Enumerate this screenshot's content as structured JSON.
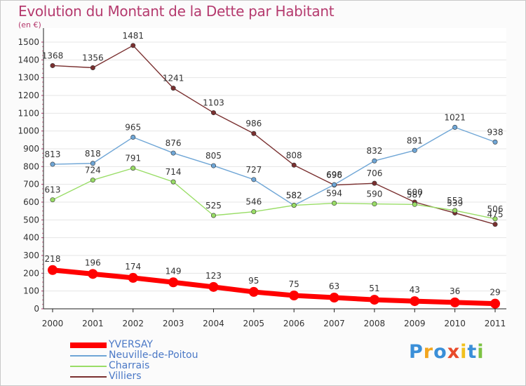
{
  "header": {
    "title": "Evolution du Montant de la Dette par Habitant",
    "subtitle": "(en €)"
  },
  "colors": {
    "title": "#b53a6e",
    "axis_label": "#333333",
    "data_label": "#333333",
    "legend_label": "#4a78c6"
  },
  "chart_data": {
    "type": "line",
    "title": "Evolution du Montant de la Dette par Habitant",
    "subtitle": "(en €)",
    "x": [
      "2000",
      "2001",
      "2002",
      "2003",
      "2004",
      "2005",
      "2006",
      "2007",
      "2008",
      "2009",
      "2010",
      "2011"
    ],
    "ylim": [
      0,
      1500
    ],
    "yticks": [
      0,
      100,
      200,
      300,
      400,
      500,
      600,
      700,
      800,
      900,
      1000,
      1100,
      1200,
      1300,
      1400,
      1500
    ],
    "grid": "horizontal",
    "legend_position": "bottom-left",
    "series": [
      {
        "name": "YVERSAY",
        "color": "#ff0000",
        "values": [
          218,
          196,
          174,
          149,
          123,
          95,
          75,
          63,
          51,
          43,
          36,
          29
        ]
      },
      {
        "name": "Neuville-de-Poitou",
        "color": "#6fa6d6",
        "values": [
          813,
          818,
          965,
          876,
          805,
          727,
          582,
          698,
          832,
          891,
          1021,
          938
        ]
      },
      {
        "name": "Charrais",
        "color": "#99dd66",
        "values": [
          613,
          724,
          791,
          714,
          525,
          546,
          582,
          594,
          590,
          587,
          553,
          506
        ]
      },
      {
        "name": "Villiers",
        "color": "#7a3030",
        "values": [
          1368,
          1356,
          1481,
          1241,
          1103,
          986,
          808,
          696,
          706,
          600,
          539,
          475
        ]
      }
    ]
  },
  "logo": {
    "letters": [
      "P",
      "r",
      "o",
      "x",
      "i",
      "t",
      "i"
    ],
    "colors": [
      "#3a8fd8",
      "#f2a51e",
      "#3a8fd8",
      "#e84a2a",
      "#f2c11e",
      "#3a8fd8",
      "#7cc242"
    ]
  }
}
